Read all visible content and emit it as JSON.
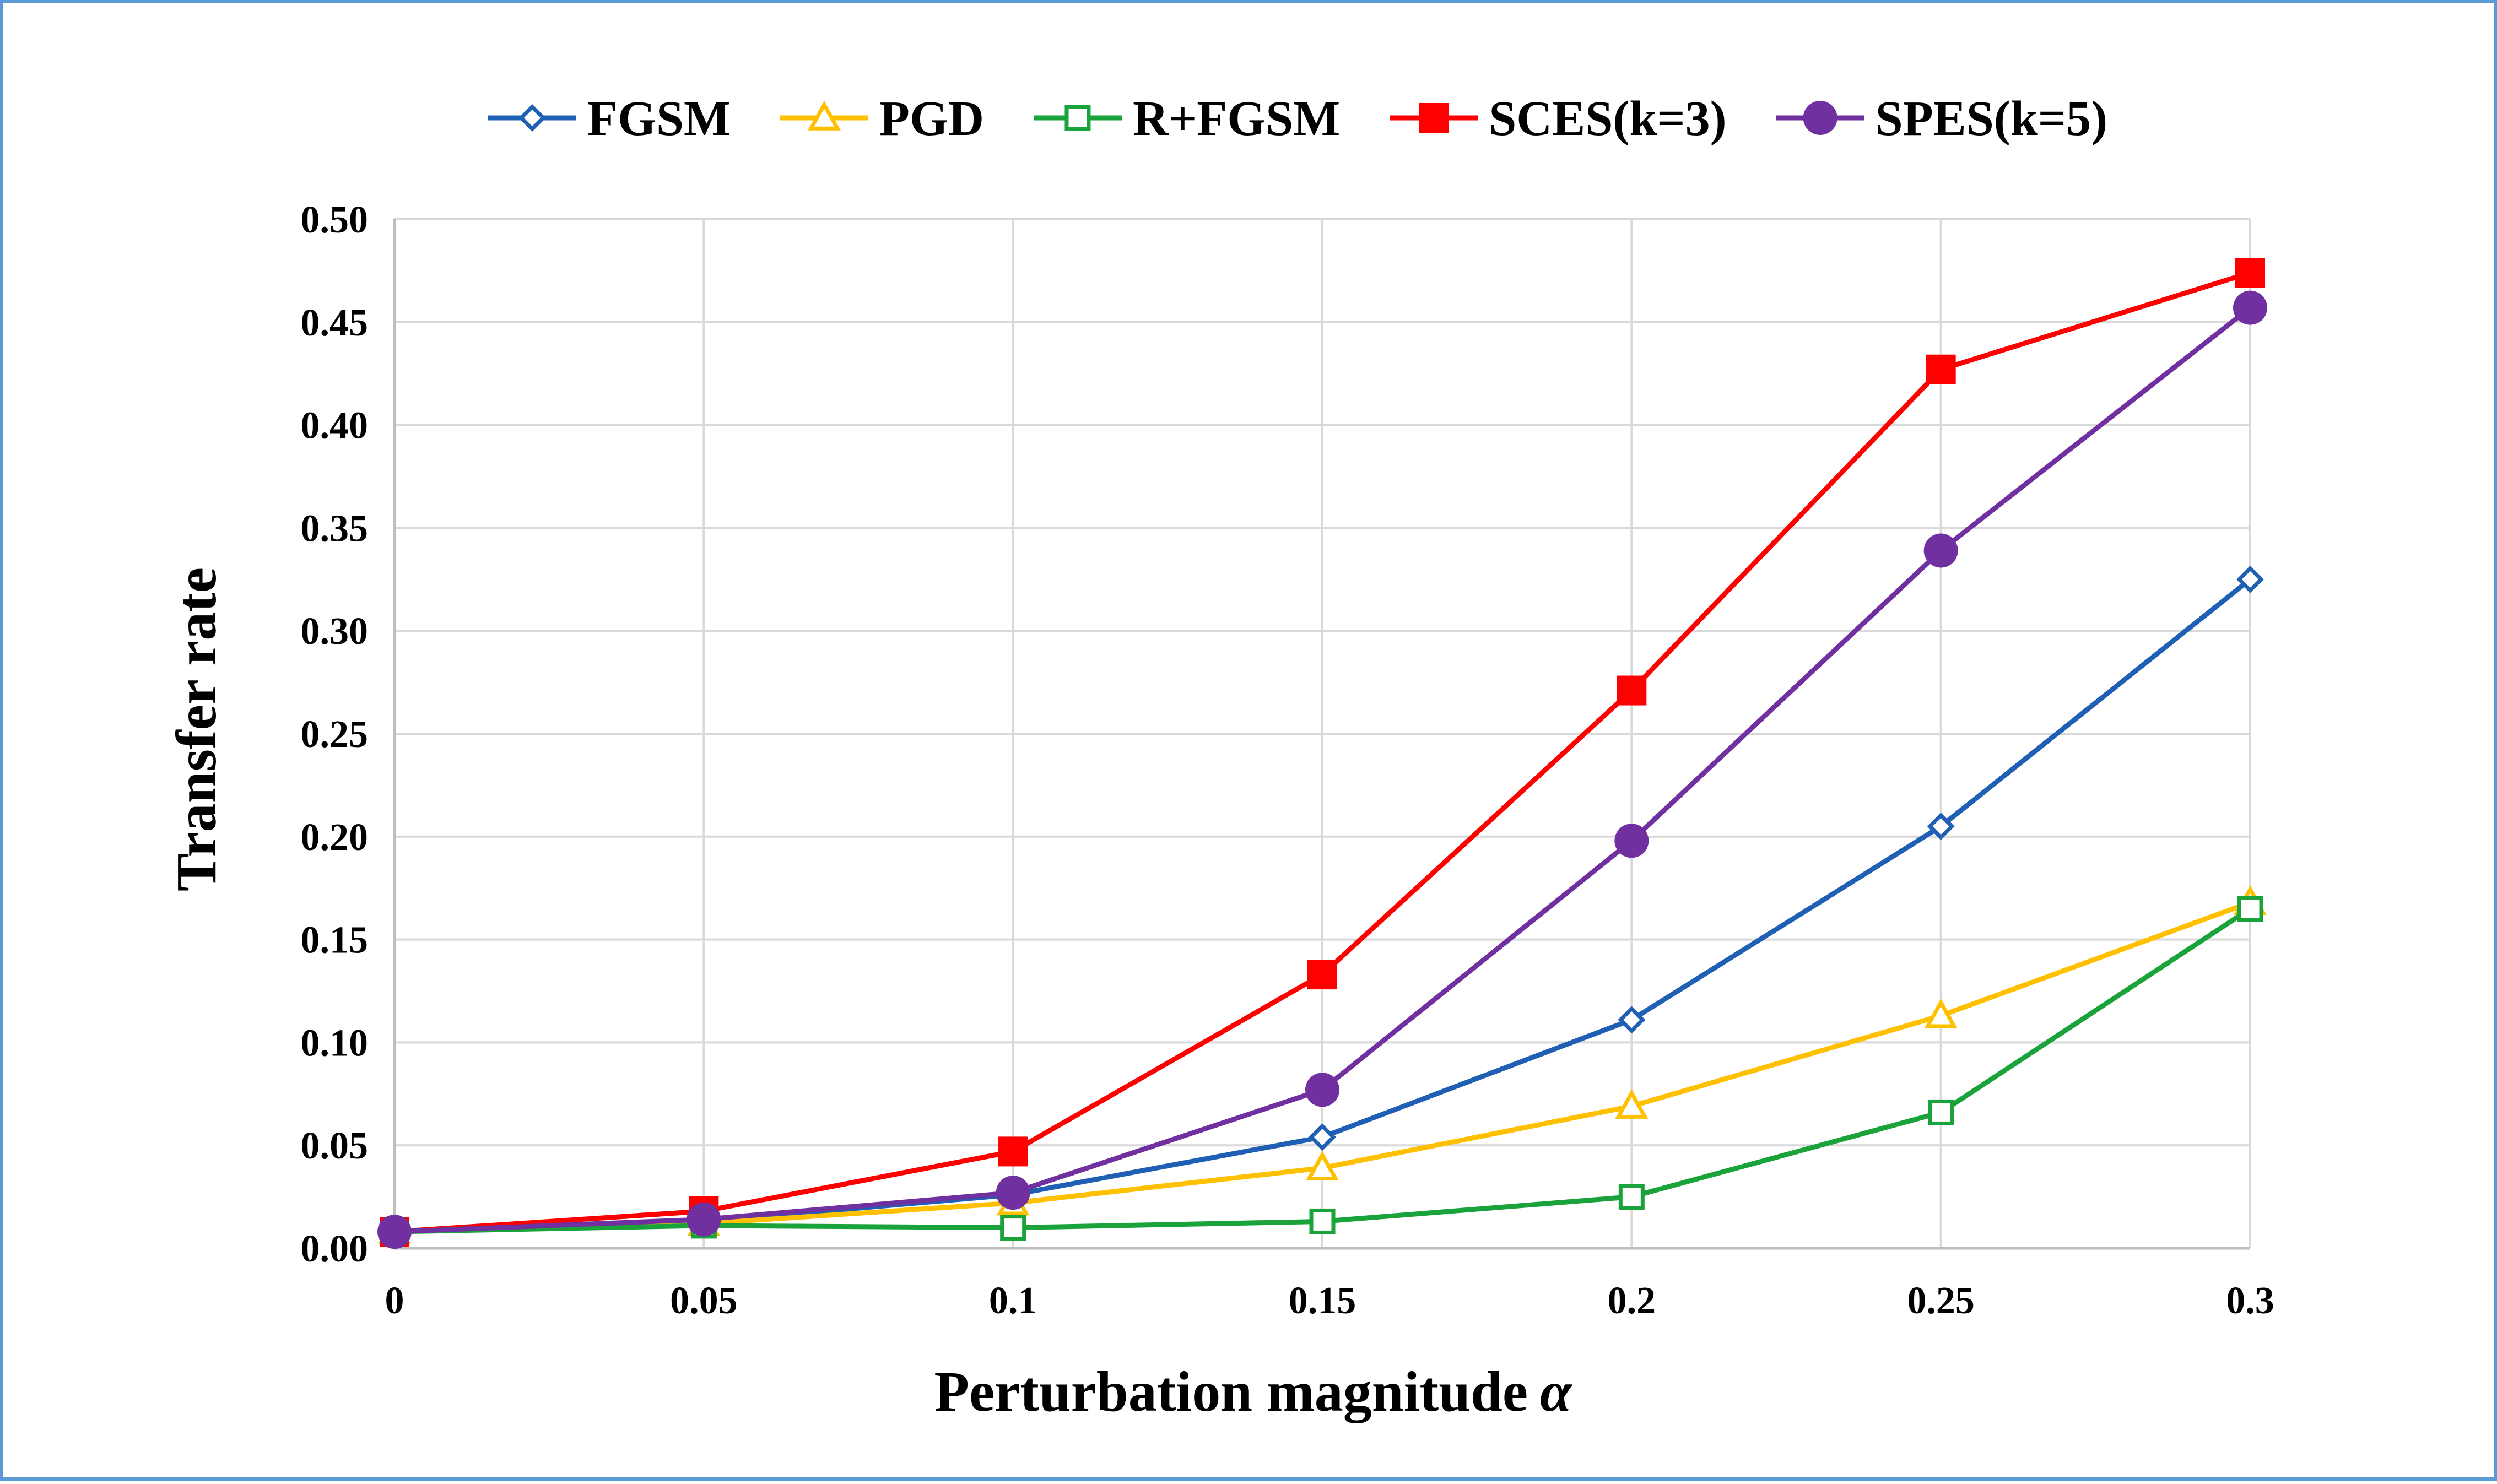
{
  "chart_data": {
    "type": "line",
    "x": [
      0,
      0.05,
      0.1,
      0.15,
      0.2,
      0.25,
      0.3
    ],
    "x_tick_labels": [
      "0",
      "0.05",
      "0.1",
      "0.15",
      "0.2",
      "0.25",
      "0.3"
    ],
    "y_tick_labels": [
      "0.00",
      "0.05",
      "0.10",
      "0.15",
      "0.20",
      "0.25",
      "0.30",
      "0.35",
      "0.40",
      "0.45",
      "0.50"
    ],
    "xlabel": "Perturbation magnitude",
    "xlabel_symbol": "α",
    "ylabel": "Transfer rate",
    "ylim": [
      0,
      0.5
    ],
    "grid": "vertical and horizontal",
    "legend_position": "top-center",
    "series": [
      {
        "name": "FGSM",
        "color": "#1f5fb4",
        "marker": "diamond-open",
        "values": [
          0.008,
          0.013,
          0.026,
          0.054,
          0.111,
          0.205,
          0.325
        ]
      },
      {
        "name": "PGD",
        "color": "#ffc000",
        "marker": "triangle-open",
        "values": [
          0.008,
          0.012,
          0.022,
          0.039,
          0.069,
          0.113,
          0.168
        ]
      },
      {
        "name": "R+FGSM",
        "color": "#1aa33a",
        "marker": "square-open",
        "values": [
          0.008,
          0.011,
          0.01,
          0.013,
          0.025,
          0.066,
          0.165
        ]
      },
      {
        "name": "SCES(k=3)",
        "color": "#ff0000",
        "marker": "square-filled",
        "values": [
          0.008,
          0.018,
          0.047,
          0.133,
          0.271,
          0.427,
          0.474
        ]
      },
      {
        "name": "SPES(k=5)",
        "color": "#7030a0",
        "marker": "circle-filled",
        "values": [
          0.008,
          0.014,
          0.027,
          0.077,
          0.198,
          0.339,
          0.457
        ]
      }
    ]
  }
}
